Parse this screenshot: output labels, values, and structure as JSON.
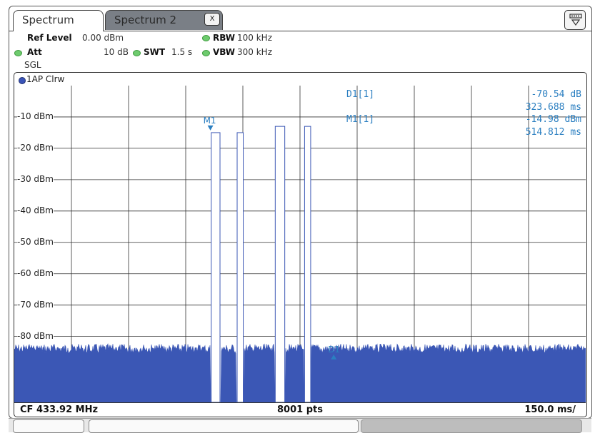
{
  "tabs": [
    {
      "label": "Spectrum",
      "active": true
    },
    {
      "label": "Spectrum 2",
      "active": false
    }
  ],
  "tab_close_glyph": "X",
  "settings": {
    "ref_level_label": "Ref Level",
    "ref_level_value": "0.00 dBm",
    "att_label": "Att",
    "att_value": "10 dB",
    "swt_label": "SWT",
    "swt_value": "1.5 s",
    "rbw_label": "RBW",
    "rbw_value": "100 kHz",
    "vbw_label": "VBW",
    "vbw_value": "300 kHz",
    "mode": "SGL"
  },
  "trace_label": "1AP Clrw",
  "markers": {
    "d1_label": "D1[1]",
    "d1_level": "-70.54 dB",
    "d1_time": "323.688 ms",
    "m1_label": "M1[1]",
    "m1_level": "-14.98 dBm",
    "m1_time": "514.812 ms",
    "m1_tag": "M1",
    "d1_tag": "D1"
  },
  "footer": {
    "center": "CF 433.92 MHz",
    "points": "8001 pts",
    "span": "150.0 ms/"
  },
  "colors": {
    "trace": "#3b57b5",
    "marker": "#2b7fc1",
    "grid": "#333333"
  },
  "chart_data": {
    "type": "line",
    "title": "",
    "xlabel": "",
    "ylabel": "",
    "y_tick_labels": [
      "-10 dBm",
      "-20 dBm",
      "-30 dBm",
      "-40 dBm",
      "-50 dBm",
      "-60 dBm",
      "-70 dBm",
      "-80 dBm"
    ],
    "y_ticks": [
      -10,
      -20,
      -30,
      -40,
      -50,
      -60,
      -70,
      -80
    ],
    "ylim": [
      0,
      -100
    ],
    "xlim_ms": [
      0,
      1500
    ],
    "grid": true,
    "noise_floor_dbm": -84,
    "pulses": [
      {
        "start_ms": 517,
        "end_ms": 540,
        "level_dbm": -15
      },
      {
        "start_ms": 585,
        "end_ms": 601,
        "level_dbm": -15
      },
      {
        "start_ms": 685,
        "end_ms": 710,
        "level_dbm": -13
      },
      {
        "start_ms": 762,
        "end_ms": 778,
        "level_dbm": -13
      }
    ],
    "markers": [
      {
        "name": "M1",
        "x_ms": 514.812,
        "y_dbm": -14.98
      },
      {
        "name": "D1",
        "x_ms": 838.5,
        "y_dbm": -85.52
      }
    ]
  }
}
